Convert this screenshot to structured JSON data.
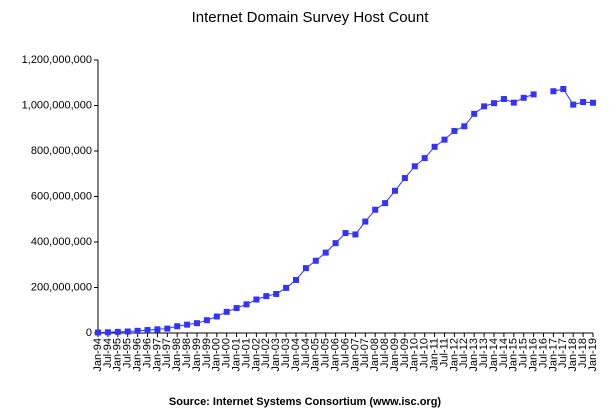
{
  "chart_data": {
    "type": "line",
    "title": "Internet Domain Survey Host Count",
    "source": "Source: Internet Systems Consortium (www.isc.org)",
    "color": "#3333ff",
    "categories": [
      "Jan-94",
      "Jul-94",
      "Jan-95",
      "Jul-95",
      "Jan-96",
      "Jul-96",
      "Jan-97",
      "Jul-97",
      "Jan-98",
      "Jul-98",
      "Jan-99",
      "Jul-99",
      "Jan-00",
      "Jul-00",
      "Jan-01",
      "Jul-01",
      "Jan-02",
      "Jul-02",
      "Jan-03",
      "Jul-03",
      "Jan-04",
      "Jul-04",
      "Jan-05",
      "Jul-05",
      "Jan-06",
      "Jul-06",
      "Jan-07",
      "Jul-07",
      "Jan-08",
      "Jul-08",
      "Jan-09",
      "Jul-09",
      "Jan-10",
      "Jul-10",
      "Jan-11",
      "Jul-11",
      "Jan-12",
      "Jul-12",
      "Jan-13",
      "Jul-13",
      "Jan-14",
      "Jul-14",
      "Jan-15",
      "Jul-15",
      "Jan-16",
      "Jul-16",
      "Jan-17",
      "Jul-17",
      "Jan-18",
      "Jul-18",
      "Jan-19"
    ],
    "values": [
      2200000,
      3200000,
      4900000,
      6600000,
      9500000,
      12900000,
      16100000,
      19500000,
      29700000,
      36700000,
      43200000,
      56200000,
      72400000,
      93000000,
      109600000,
      125900000,
      147300000,
      162100000,
      171600000,
      198200000,
      233100000,
      285100000,
      317600000,
      353300000,
      394900000,
      439300000,
      433200000,
      489800000,
      541700000,
      570900000,
      625200000,
      681100000,
      732700000,
      768900000,
      818400000,
      849900000,
      888200000,
      908600000,
      963500000,
      996200000,
      1010300000,
      1028500000,
      1012600000,
      1033800000,
      1048800000,
      null,
      1062700000,
      1072600000,
      1003900000,
      1015200000,
      1012000000
    ],
    "ylim": [
      0,
      1200000000
    ],
    "yticks": [
      0,
      {
        "value": 200000000,
        "label": "200,000,000"
      },
      {
        "value": 400000000,
        "label": "400,000,000"
      },
      {
        "value": 600000000,
        "label": "600,000,000"
      },
      {
        "value": 800000000,
        "label": "800,000,000"
      },
      {
        "value": 1000000000,
        "label": "1,000,000,000"
      },
      {
        "value": 1200000000,
        "label": "1,200,000,000"
      }
    ]
  }
}
